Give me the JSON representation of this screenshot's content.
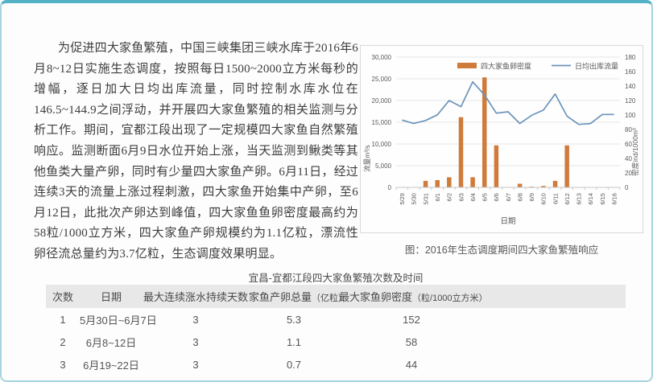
{
  "page": {
    "background": "#fdfdfd",
    "border_top_color": "#54b2c6",
    "border_side_color": "#a6d4e0"
  },
  "article": {
    "paragraph": "为促进四大家鱼繁殖，中国三峡集团三峡水库于2016年6月8~12日实施生态调度，按照每日1500~2000立方米每秒的增幅，逐日加大日均出库流量，同时控制水库水位在146.5~144.9之间浮动，并开展四大家鱼繁殖的相关监测与分析工作。期间，宜都江段出现了一定规模四大家鱼自然繁殖响应。监测断面6月9日水位开始上涨，当天监测到鳅类等其他鱼类大量产卵，同时有少量四大家鱼产卵。6月11日，经过连续3天的流量上涨过程刺激，四大家鱼开始集中产卵，至6月12日，此批次产卵达到峰值，四大家鱼鱼卵密度最高约为58粒/1000立方米，四大家鱼产卵规模约为1.1亿粒，漂流性卵径流总量约为3.7亿粒，生态调度效果明显。"
  },
  "chart_caption": "图：2016年生态调度期间四大家鱼繁殖响应",
  "chart_data": {
    "type": "bar+line combo",
    "categories": [
      "5/29",
      "5/30",
      "5/31",
      "6/1",
      "6/2",
      "6/3",
      "6/4",
      "6/5",
      "6/6",
      "6/7",
      "6/8",
      "6/9",
      "6/10",
      "6/11",
      "6/12",
      "6/13",
      "6/14",
      "6/15",
      "6/16"
    ],
    "series": [
      {
        "name": "四大家鱼卵密度",
        "type": "bar",
        "axis": "right",
        "color": "#cf7b3b",
        "values": [
          0,
          0,
          9,
          10,
          14,
          97,
          14,
          152,
          58,
          0,
          5,
          1,
          2,
          9,
          58,
          0,
          0,
          0,
          0
        ]
      },
      {
        "name": "日均出库流量",
        "type": "line",
        "axis": "left",
        "color": "#6b94ba",
        "values": [
          15500,
          14700,
          15400,
          16700,
          20000,
          18600,
          24300,
          21300,
          17100,
          17400,
          14700,
          16600,
          17800,
          21500,
          16400,
          14500,
          14700,
          16800,
          16800
        ]
      }
    ],
    "xlabel": "日期",
    "left_axis": {
      "title": "流量m³/s",
      "min": 0,
      "max": 30000,
      "step": 5000
    },
    "right_axis": {
      "title": "密度ind/1000m³",
      "min": 0,
      "max": 180,
      "step": 20
    },
    "grid": true,
    "legend_position": "top"
  },
  "table": {
    "title": "宜昌-宜都江段四大家鱼繁殖次数及时间",
    "headers": [
      {
        "label": "次数",
        "sub": ""
      },
      {
        "label": "日期",
        "sub": ""
      },
      {
        "label": "最大连续涨水持续天数",
        "sub": ""
      },
      {
        "label": "家鱼产卵总量",
        "sub": "（亿粒）"
      },
      {
        "label": "最大家鱼卵密度",
        "sub": "（粒/1000立方米）"
      }
    ],
    "rows": [
      [
        "1",
        "5月30日~6月7日",
        "3",
        "5.3",
        "152"
      ],
      [
        "2",
        "6月8~12日",
        "3",
        "1.1",
        "58"
      ],
      [
        "3",
        "6月19~22日",
        "3",
        "0.7",
        "44"
      ]
    ]
  }
}
